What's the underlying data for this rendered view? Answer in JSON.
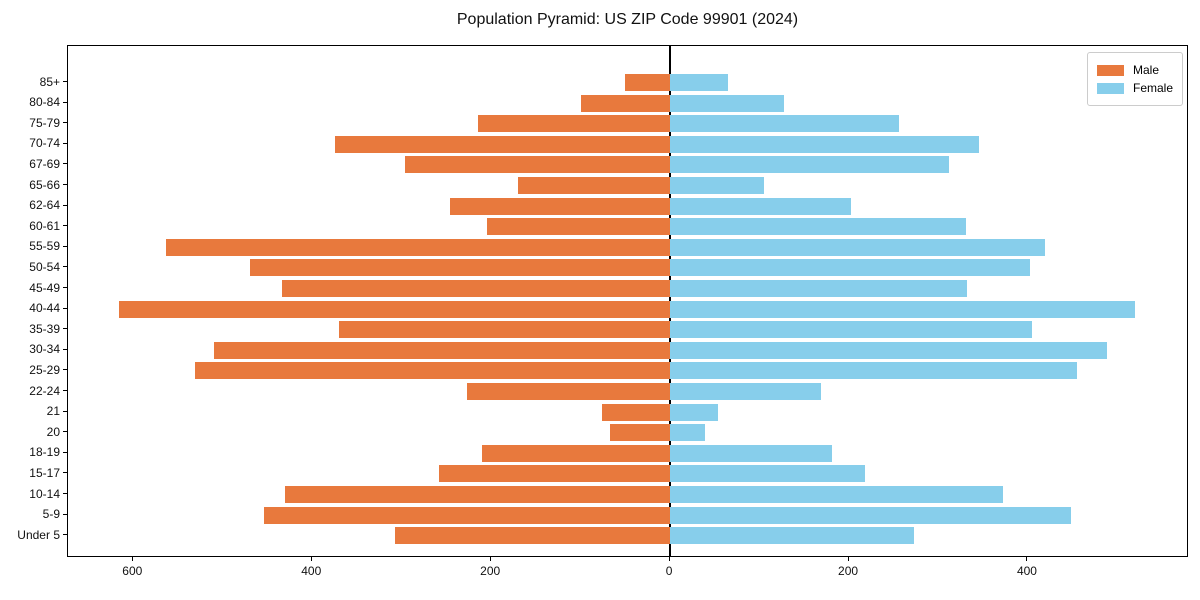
{
  "title": "Population Pyramid: US ZIP Code 99901 (2024)",
  "legend": {
    "male_label": "Male",
    "female_label": "Female"
  },
  "colors": {
    "male": "#E8793D",
    "female": "#87CEEB",
    "axis": "#000000",
    "legend_border": "#cccccc"
  },
  "chart_data": {
    "type": "bar",
    "variant": "population-pyramid",
    "orientation": "horizontal",
    "title": "Population Pyramid: US ZIP Code 99901 (2024)",
    "categories": [
      "85+",
      "80-84",
      "75-79",
      "70-74",
      "67-69",
      "65-66",
      "62-64",
      "60-61",
      "55-59",
      "50-54",
      "45-49",
      "40-44",
      "35-39",
      "30-34",
      "25-29",
      "22-24",
      "21",
      "20",
      "18-19",
      "15-17",
      "10-14",
      "5-9",
      "Under 5"
    ],
    "series": [
      {
        "name": "Male",
        "side": "left",
        "color": "#E8793D",
        "values": [
          50,
          100,
          215,
          375,
          296,
          170,
          246,
          205,
          564,
          470,
          434,
          616,
          370,
          510,
          531,
          227,
          76,
          67,
          210,
          258,
          430,
          454,
          307
        ]
      },
      {
        "name": "Female",
        "side": "right",
        "color": "#87CEEB",
        "values": [
          65,
          127,
          256,
          345,
          312,
          105,
          202,
          331,
          419,
          402,
          332,
          520,
          404,
          488,
          455,
          169,
          54,
          39,
          181,
          218,
          372,
          448,
          273
        ]
      }
    ],
    "xlabel": "",
    "ylabel": "",
    "xlim": [
      -673,
      580
    ],
    "x_tick_values": [
      -600,
      -400,
      -200,
      0,
      200,
      400
    ],
    "x_tick_labels": [
      "600",
      "400",
      "200",
      "0",
      "200",
      "400"
    ],
    "grid": false,
    "zero_line": true,
    "legend_position": "upper right"
  }
}
